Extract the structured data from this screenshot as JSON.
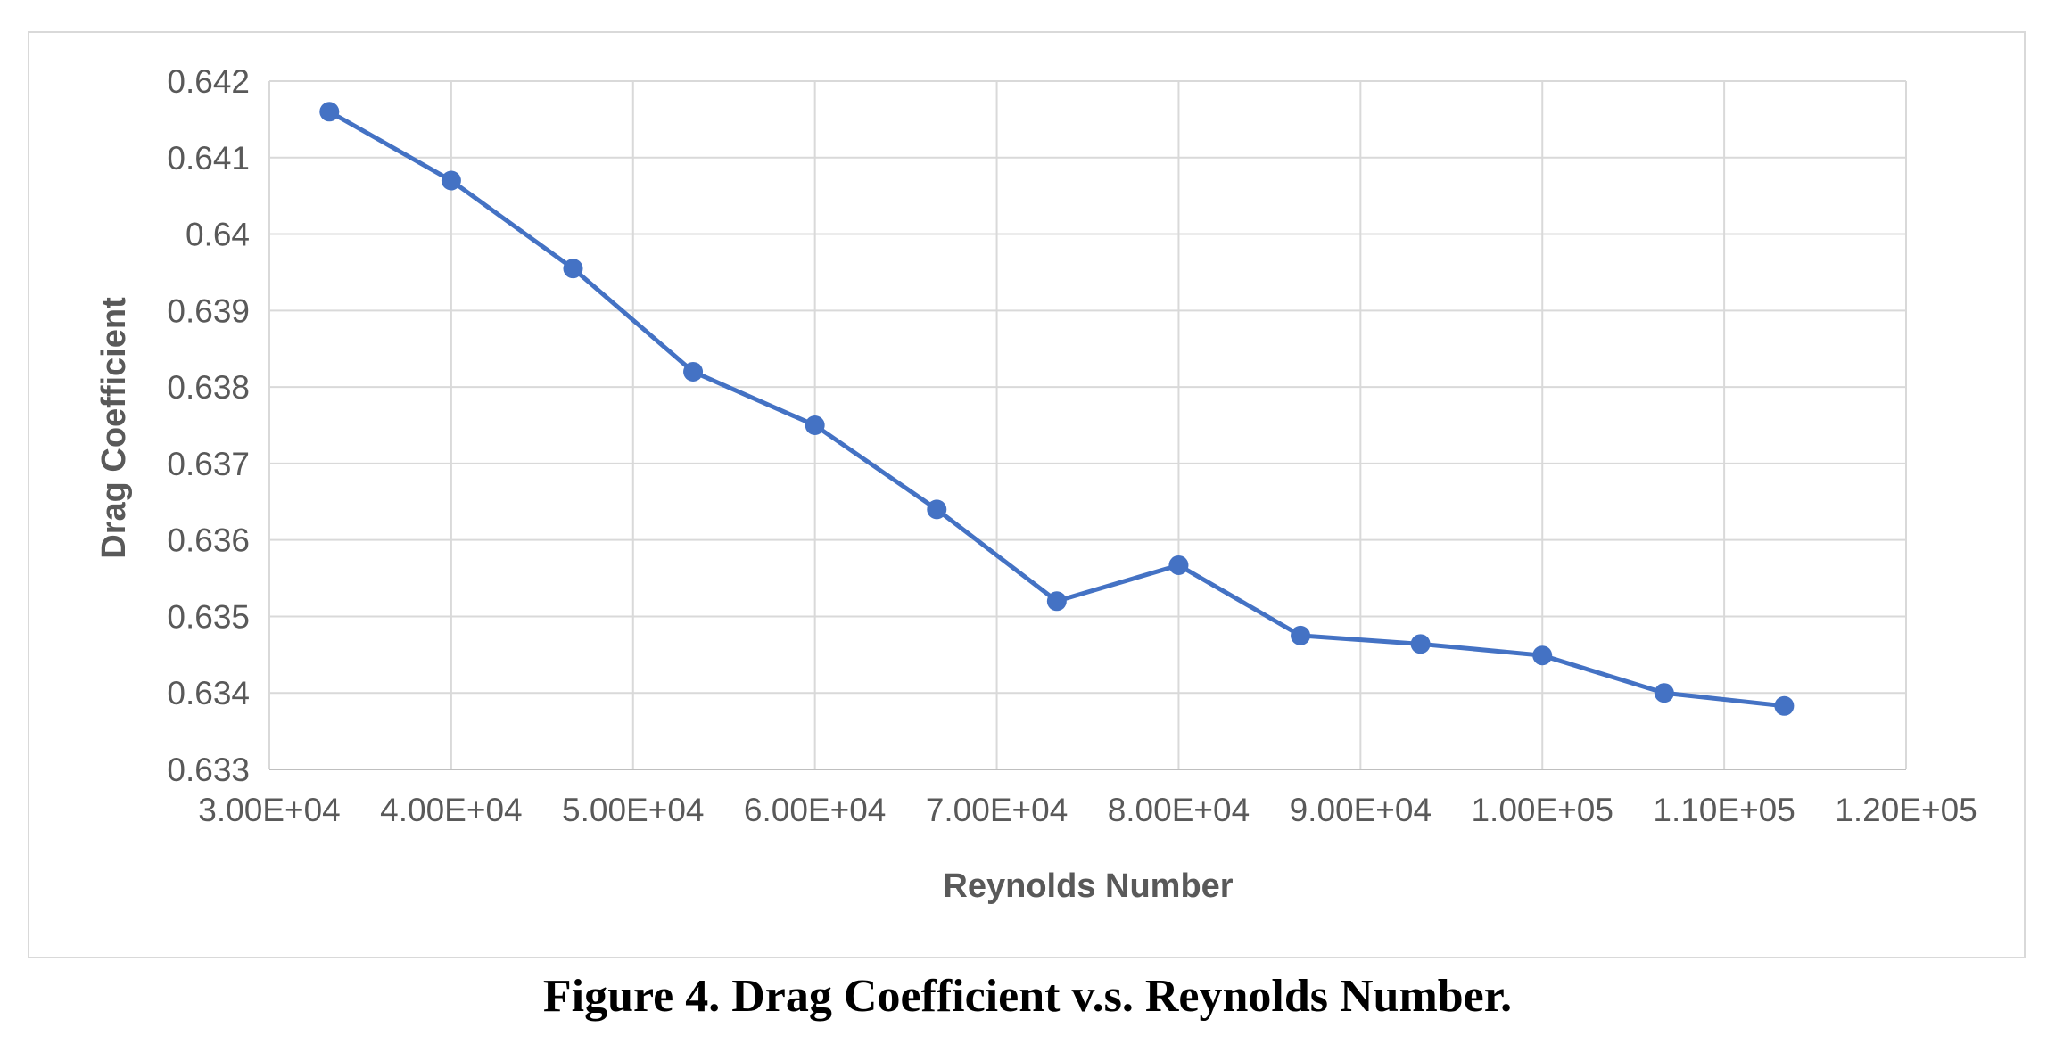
{
  "chart_data": {
    "type": "line",
    "xlabel": "Reynolds Number",
    "ylabel": "Drag Coefficient",
    "xlim": [
      30000,
      120000
    ],
    "ylim": [
      0.633,
      0.642
    ],
    "x_ticks": [
      30000,
      40000,
      50000,
      60000,
      70000,
      80000,
      90000,
      100000,
      110000,
      120000
    ],
    "x_tick_labels": [
      "3.00E+04",
      "4.00E+04",
      "5.00E+04",
      "6.00E+04",
      "7.00E+04",
      "8.00E+04",
      "9.00E+04",
      "1.00E+05",
      "1.10E+05",
      "1.20E+05"
    ],
    "y_ticks": [
      0.633,
      0.634,
      0.635,
      0.636,
      0.637,
      0.638,
      0.639,
      0.64,
      0.641,
      0.642
    ],
    "y_tick_labels": [
      "0.633",
      "0.634",
      "0.635",
      "0.636",
      "0.637",
      "0.638",
      "0.639",
      "0.64",
      "0.641",
      "0.642"
    ],
    "grid": true,
    "legend": "none",
    "series": [
      {
        "color": "#4472c4",
        "x": [
          33300,
          40000,
          46700,
          53300,
          60000,
          66700,
          73300,
          80000,
          86700,
          93300,
          100000,
          106700,
          113300
        ],
        "y": [
          0.6416,
          0.6407,
          0.63955,
          0.6382,
          0.6375,
          0.6364,
          0.6352,
          0.63567,
          0.63475,
          0.63464,
          0.63449,
          0.634,
          0.63383
        ]
      }
    ]
  },
  "caption": "Figure 4. Drag Coefficient v.s. Reynolds Number."
}
